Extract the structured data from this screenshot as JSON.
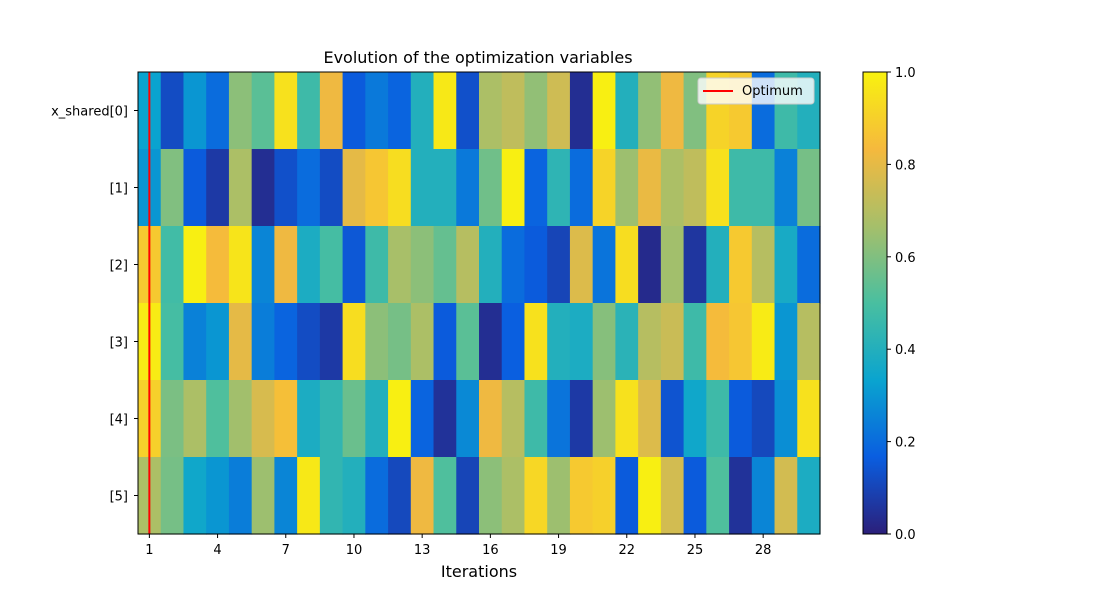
{
  "chart_data": {
    "type": "heatmap",
    "title": "Evolution of the optimization variables",
    "xlabel": "Iterations",
    "ylabel": "",
    "x_tick_labels": [
      "1",
      "4",
      "7",
      "10",
      "13",
      "16",
      "19",
      "22",
      "25",
      "28"
    ],
    "x_tick_indices": [
      1,
      4,
      7,
      10,
      13,
      16,
      19,
      22,
      25,
      28
    ],
    "x_range": [
      0.5,
      30.5
    ],
    "rows": [
      "x_shared[0]",
      "[1]",
      "[2]",
      "[3]",
      "[4]",
      "[5]"
    ],
    "values": [
      [
        0.33,
        0.12,
        0.3,
        0.2,
        0.62,
        0.53,
        0.95,
        0.47,
        0.82,
        0.16,
        0.23,
        0.18,
        0.4,
        0.97,
        0.13,
        0.68,
        0.72,
        0.63,
        0.75,
        0.04,
        0.99,
        0.4,
        0.63,
        0.82,
        0.6,
        0.91,
        0.88,
        0.2,
        0.47,
        0.4
      ],
      [
        0.3,
        0.6,
        0.16,
        0.07,
        0.68,
        0.04,
        0.13,
        0.2,
        0.12,
        0.8,
        0.87,
        0.94,
        0.4,
        0.4,
        0.23,
        0.57,
        0.99,
        0.18,
        0.43,
        0.2,
        0.91,
        0.65,
        0.81,
        0.68,
        0.72,
        0.95,
        0.47,
        0.47,
        0.25,
        0.58
      ],
      [
        0.88,
        0.48,
        0.99,
        0.84,
        0.96,
        0.26,
        0.82,
        0.38,
        0.49,
        0.15,
        0.47,
        0.67,
        0.62,
        0.55,
        0.7,
        0.4,
        0.2,
        0.16,
        0.1,
        0.78,
        0.22,
        0.94,
        0.03,
        0.66,
        0.06,
        0.4,
        0.88,
        0.7,
        0.37,
        0.2
      ],
      [
        0.98,
        0.49,
        0.25,
        0.3,
        0.8,
        0.24,
        0.18,
        0.12,
        0.07,
        0.94,
        0.62,
        0.58,
        0.68,
        0.16,
        0.53,
        0.04,
        0.17,
        0.95,
        0.4,
        0.38,
        0.61,
        0.42,
        0.7,
        0.74,
        0.47,
        0.84,
        0.87,
        0.98,
        0.3,
        0.7
      ],
      [
        0.9,
        0.59,
        0.68,
        0.51,
        0.66,
        0.77,
        0.85,
        0.38,
        0.44,
        0.56,
        0.4,
        0.99,
        0.18,
        0.05,
        0.27,
        0.82,
        0.7,
        0.47,
        0.22,
        0.07,
        0.65,
        0.95,
        0.78,
        0.14,
        0.35,
        0.47,
        0.16,
        0.11,
        0.28,
        0.95
      ],
      [
        0.68,
        0.58,
        0.35,
        0.3,
        0.24,
        0.65,
        0.26,
        0.97,
        0.44,
        0.4,
        0.2,
        0.11,
        0.82,
        0.51,
        0.1,
        0.62,
        0.68,
        0.92,
        0.65,
        0.88,
        0.9,
        0.16,
        0.99,
        0.76,
        0.16,
        0.51,
        0.05,
        0.26,
        0.76,
        0.38
      ]
    ],
    "colorbar": {
      "min": 0.0,
      "max": 1.0,
      "tick_labels": [
        "0.0",
        "0.2",
        "0.4",
        "0.6",
        "0.8",
        "1.0"
      ],
      "tick_values": [
        0.0,
        0.2,
        0.4,
        0.6,
        0.8,
        1.0
      ]
    },
    "colormap": [
      "#2b1f7a",
      "#0a5ee0",
      "#0aa4cf",
      "#49bfa0",
      "#a6bf6a",
      "#f5b93d",
      "#f8f20f"
    ],
    "optimum_line": {
      "x": 1,
      "label": "Optimum",
      "color": "#ff0000"
    },
    "legend_position": "top-right"
  }
}
